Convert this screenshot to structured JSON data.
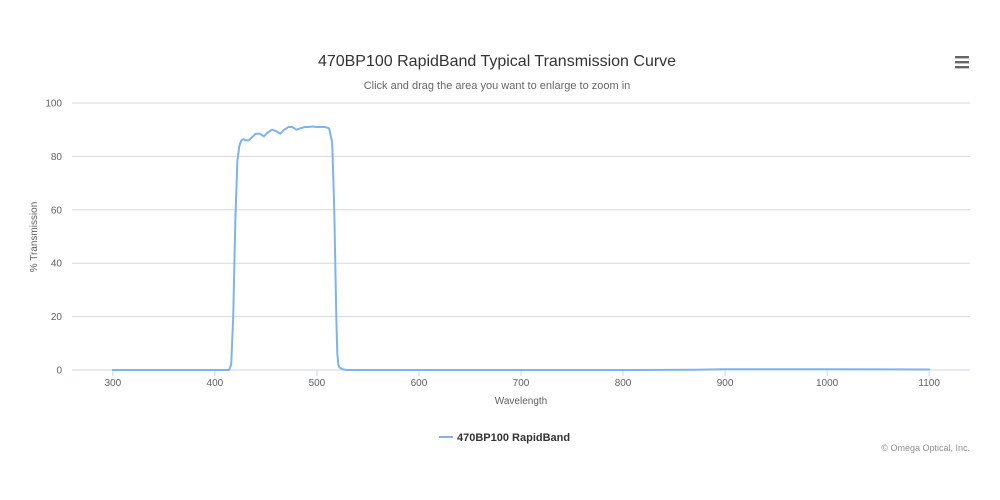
{
  "chart_data": {
    "type": "line",
    "title": "470BP100 RapidBand Typical Transmission Curve",
    "subtitle": "Click and drag the area you want to enlarge to zoom in",
    "xlabel": "Wavelength",
    "ylabel": "% Transmission",
    "xlim": [
      260,
      1140
    ],
    "ylim": [
      0,
      100
    ],
    "x_ticks": [
      300,
      400,
      500,
      600,
      700,
      800,
      900,
      1000,
      1100
    ],
    "y_ticks": [
      0,
      20,
      40,
      60,
      80,
      100
    ],
    "grid": true,
    "legend_position": "bottom-center",
    "colors": {
      "series": "#7cb5ec",
      "grid": "#d8d8d8",
      "axis": "#ccd6eb"
    },
    "series": [
      {
        "name": "470BP100 RapidBand",
        "x": [
          300,
          350,
          400,
          414,
          416,
          418,
          420,
          422,
          424,
          426,
          428,
          430,
          433,
          436,
          440,
          444,
          448,
          452,
          456,
          460,
          464,
          468,
          472,
          476,
          480,
          484,
          488,
          492,
          496,
          500,
          504,
          508,
          512,
          515,
          517,
          518,
          519,
          520,
          521,
          522,
          524,
          526,
          530,
          600,
          700,
          800,
          870,
          900,
          1000,
          1100
        ],
        "y": [
          0,
          0,
          0,
          0,
          2,
          20,
          55,
          78,
          84,
          86,
          86.5,
          86,
          86,
          87,
          88.5,
          88.5,
          87.5,
          89,
          90,
          89.5,
          88.5,
          90,
          91,
          91,
          90,
          90.5,
          91,
          91,
          91.2,
          91,
          91,
          91,
          90.5,
          85,
          60,
          40,
          20,
          6,
          2,
          1,
          0.5,
          0.2,
          0,
          0,
          0,
          0,
          0.1,
          0.3,
          0.3,
          0.2
        ]
      }
    ]
  },
  "ui": {
    "menu_icon": "hamburger-menu-icon",
    "credits": "© Omega Optical, Inc."
  }
}
